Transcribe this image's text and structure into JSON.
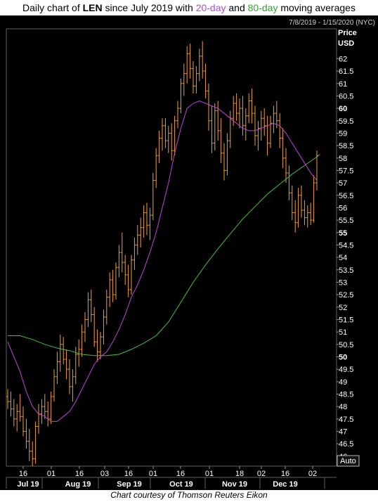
{
  "title": {
    "prefix": "Daily chart of ",
    "ticker": "LEN",
    "middle": " since July 2019 with ",
    "ma20": "20-day",
    "and": " and ",
    "ma80": "80-day",
    "suffix": " moving averages"
  },
  "date_range": "7/8/2019 - 1/15/2020 (NYC)",
  "price_label": "Price",
  "currency_label": "USD",
  "auto_label": "Auto",
  "caption": "Chart courtesy of Thomson Reuters Eikon",
  "colors": {
    "background": "#000000",
    "bars": "#f0a030",
    "ma20": "#c040e0",
    "ma80": "#40c040",
    "axis_text": "#ffffff",
    "panel": "#000000"
  },
  "chart_data": {
    "type": "ohlc",
    "ylim": [
      45.6,
      63.2
    ],
    "y_ticks": [
      {
        "v": 62,
        "label": "62",
        "bold": false
      },
      {
        "v": 61.5,
        "label": "61.5",
        "bold": false
      },
      {
        "v": 61,
        "label": "61",
        "bold": false
      },
      {
        "v": 60.5,
        "label": "60.5",
        "bold": false
      },
      {
        "v": 60,
        "label": "60",
        "bold": true
      },
      {
        "v": 59.5,
        "label": "59.5",
        "bold": false
      },
      {
        "v": 59,
        "label": "59",
        "bold": false
      },
      {
        "v": 58.5,
        "label": "58.5",
        "bold": false
      },
      {
        "v": 58,
        "label": "58",
        "bold": false
      },
      {
        "v": 57.5,
        "label": "57.5",
        "bold": false
      },
      {
        "v": 57,
        "label": "57",
        "bold": false
      },
      {
        "v": 56.5,
        "label": "56.5",
        "bold": false
      },
      {
        "v": 56,
        "label": "56",
        "bold": false
      },
      {
        "v": 55.5,
        "label": "55.5",
        "bold": false
      },
      {
        "v": 55,
        "label": "55",
        "bold": true
      },
      {
        "v": 54.5,
        "label": "54.5",
        "bold": false
      },
      {
        "v": 54,
        "label": "54",
        "bold": false
      },
      {
        "v": 53.5,
        "label": "53.5",
        "bold": false
      },
      {
        "v": 53,
        "label": "53",
        "bold": false
      },
      {
        "v": 52.5,
        "label": "52.5",
        "bold": false
      },
      {
        "v": 52,
        "label": "52",
        "bold": false
      },
      {
        "v": 51.5,
        "label": "51.5",
        "bold": false
      },
      {
        "v": 51,
        "label": "51",
        "bold": false
      },
      {
        "v": 50.5,
        "label": "50.5",
        "bold": false
      },
      {
        "v": 50,
        "label": "50",
        "bold": true
      },
      {
        "v": 49.5,
        "label": "49.5",
        "bold": false
      },
      {
        "v": 49,
        "label": "49",
        "bold": false
      },
      {
        "v": 48.5,
        "label": "48.5",
        "bold": false
      },
      {
        "v": 48,
        "label": "48",
        "bold": false
      },
      {
        "v": 47.5,
        "label": "47.5",
        "bold": false
      },
      {
        "v": 47,
        "label": "47",
        "bold": false
      },
      {
        "v": 46.5,
        "label": "46.5",
        "bold": false
      },
      {
        "v": 46,
        "label": "46",
        "bold": false
      }
    ],
    "x_day_ticks": [
      "16",
      "01",
      "16",
      "03",
      "16",
      "01",
      "16",
      "01",
      "18",
      "02",
      "16",
      "02"
    ],
    "x_month_labels": [
      "Jul 19",
      "Aug 19",
      "Sep 19",
      "Oct 19",
      "Nov 19",
      "Dec 19"
    ],
    "ohlc": [
      [
        48.4,
        48.7,
        47.9,
        48.2
      ],
      [
        48.2,
        48.6,
        47.6,
        47.9
      ],
      [
        47.9,
        48.3,
        47.2,
        47.5
      ],
      [
        47.5,
        48.1,
        47.0,
        47.8
      ],
      [
        47.8,
        48.5,
        47.4,
        47.6
      ],
      [
        47.6,
        48.0,
        46.8,
        47.0
      ],
      [
        47.0,
        47.5,
        46.3,
        46.6
      ],
      [
        46.6,
        47.1,
        45.8,
        46.2
      ],
      [
        46.2,
        46.6,
        45.6,
        45.9
      ],
      [
        45.9,
        47.4,
        45.7,
        47.2
      ],
      [
        47.2,
        48.1,
        46.9,
        47.7
      ],
      [
        47.7,
        48.3,
        47.3,
        48.0
      ],
      [
        48.0,
        48.5,
        47.5,
        47.8
      ],
      [
        47.8,
        48.2,
        47.2,
        47.5
      ],
      [
        47.5,
        48.6,
        47.3,
        48.4
      ],
      [
        48.4,
        49.5,
        48.2,
        49.2
      ],
      [
        49.2,
        50.2,
        48.9,
        49.8
      ],
      [
        49.8,
        50.9,
        49.4,
        50.5
      ],
      [
        50.5,
        50.8,
        49.7,
        49.9
      ],
      [
        49.9,
        50.3,
        49.1,
        49.5
      ],
      [
        49.5,
        49.9,
        48.5,
        48.8
      ],
      [
        48.8,
        49.5,
        48.2,
        49.2
      ],
      [
        49.2,
        50.4,
        48.9,
        50.1
      ],
      [
        50.1,
        50.7,
        49.6,
        50.3
      ],
      [
        50.3,
        51.3,
        50.0,
        51.0
      ],
      [
        51.0,
        51.8,
        50.6,
        51.5
      ],
      [
        51.5,
        52.6,
        51.2,
        52.3
      ],
      [
        52.3,
        52.7,
        51.4,
        51.7
      ],
      [
        51.7,
        52.0,
        50.4,
        50.6
      ],
      [
        50.6,
        51.1,
        49.8,
        50.2
      ],
      [
        50.2,
        51.0,
        49.9,
        50.8
      ],
      [
        50.8,
        51.9,
        50.5,
        51.6
      ],
      [
        51.6,
        52.7,
        51.3,
        52.4
      ],
      [
        52.4,
        53.4,
        52.0,
        53.1
      ],
      [
        53.1,
        53.5,
        52.2,
        52.5
      ],
      [
        52.5,
        53.8,
        52.3,
        53.6
      ],
      [
        53.6,
        54.5,
        53.2,
        54.2
      ],
      [
        54.2,
        55.0,
        53.4,
        53.8
      ],
      [
        53.8,
        54.1,
        52.9,
        53.3
      ],
      [
        53.3,
        53.7,
        52.4,
        52.7
      ],
      [
        52.7,
        54.1,
        52.5,
        53.9
      ],
      [
        53.9,
        54.8,
        53.5,
        54.5
      ],
      [
        54.5,
        55.3,
        54.1,
        54.9
      ],
      [
        54.9,
        55.6,
        54.4,
        55.2
      ],
      [
        55.2,
        56.1,
        54.8,
        55.8
      ],
      [
        55.8,
        56.2,
        54.9,
        55.3
      ],
      [
        55.3,
        56.0,
        54.7,
        55.7
      ],
      [
        55.7,
        57.4,
        55.5,
        57.1
      ],
      [
        57.1,
        58.4,
        56.8,
        58.1
      ],
      [
        58.1,
        59.1,
        57.8,
        58.8
      ],
      [
        58.8,
        59.6,
        58.3,
        59.3
      ],
      [
        59.3,
        59.6,
        58.4,
        58.7
      ],
      [
        58.7,
        59.3,
        58.2,
        59.0
      ],
      [
        59.0,
        59.4,
        57.9,
        58.3
      ],
      [
        58.3,
        59.7,
        58.1,
        59.5
      ],
      [
        59.5,
        60.3,
        59.2,
        60.0
      ],
      [
        60.0,
        61.2,
        59.8,
        61.0
      ],
      [
        61.0,
        61.8,
        60.5,
        61.4
      ],
      [
        61.4,
        62.5,
        61.0,
        62.2
      ],
      [
        62.2,
        62.6,
        61.2,
        61.6
      ],
      [
        61.6,
        61.9,
        60.6,
        60.9
      ],
      [
        60.9,
        61.7,
        60.6,
        61.4
      ],
      [
        61.4,
        62.4,
        61.1,
        62.1
      ],
      [
        62.1,
        62.7,
        61.2,
        61.5
      ],
      [
        61.5,
        61.8,
        60.4,
        60.7
      ],
      [
        60.7,
        61.0,
        59.1,
        59.5
      ],
      [
        59.5,
        60.1,
        58.2,
        58.6
      ],
      [
        58.6,
        60.2,
        58.3,
        59.9
      ],
      [
        59.9,
        60.3,
        58.7,
        59.1
      ],
      [
        59.1,
        59.6,
        57.8,
        58.2
      ],
      [
        58.2,
        58.6,
        57.1,
        57.5
      ],
      [
        57.5,
        59.0,
        57.3,
        58.7
      ],
      [
        58.7,
        59.9,
        58.4,
        59.6
      ],
      [
        59.6,
        60.5,
        59.3,
        60.2
      ],
      [
        60.2,
        60.6,
        59.5,
        59.8
      ],
      [
        59.8,
        60.4,
        59.2,
        60.0
      ],
      [
        60.0,
        60.5,
        58.9,
        59.3
      ],
      [
        59.3,
        60.0,
        58.7,
        59.7
      ],
      [
        59.7,
        60.6,
        59.4,
        60.3
      ],
      [
        60.3,
        60.8,
        59.4,
        59.8
      ],
      [
        59.8,
        60.1,
        58.5,
        58.9
      ],
      [
        58.9,
        59.5,
        58.3,
        59.2
      ],
      [
        59.2,
        59.9,
        58.7,
        59.6
      ],
      [
        59.6,
        60.0,
        58.9,
        59.3
      ],
      [
        59.3,
        59.7,
        58.1,
        58.6
      ],
      [
        58.6,
        59.7,
        58.4,
        59.4
      ],
      [
        59.4,
        60.1,
        59.0,
        59.8
      ],
      [
        59.8,
        60.3,
        59.2,
        59.5
      ],
      [
        59.5,
        59.8,
        58.4,
        58.8
      ],
      [
        58.8,
        59.2,
        57.6,
        58.0
      ],
      [
        58.0,
        58.4,
        57.0,
        57.4
      ],
      [
        57.4,
        57.7,
        56.3,
        56.6
      ],
      [
        56.6,
        56.9,
        55.5,
        55.8
      ],
      [
        55.8,
        56.3,
        55.0,
        55.4
      ],
      [
        55.4,
        56.8,
        55.2,
        56.5
      ],
      [
        56.5,
        56.9,
        55.6,
        55.9
      ],
      [
        55.9,
        56.3,
        55.3,
        55.6
      ],
      [
        55.6,
        56.1,
        55.2,
        55.8
      ],
      [
        55.8,
        56.2,
        55.3,
        55.5
      ],
      [
        55.5,
        57.3,
        55.4,
        57.0
      ],
      [
        57.0,
        58.3,
        56.7,
        58.1
      ]
    ],
    "ma20": [
      [
        0,
        50.6
      ],
      [
        2,
        50.0
      ],
      [
        4,
        49.4
      ],
      [
        6,
        48.6
      ],
      [
        8,
        48.0
      ],
      [
        10,
        47.7
      ],
      [
        12,
        47.6
      ],
      [
        14,
        47.4
      ],
      [
        16,
        47.4
      ],
      [
        18,
        47.6
      ],
      [
        20,
        47.8
      ],
      [
        22,
        48.2
      ],
      [
        24,
        48.7
      ],
      [
        26,
        49.2
      ],
      [
        28,
        49.7
      ],
      [
        30,
        50.0
      ],
      [
        32,
        50.2
      ],
      [
        34,
        50.6
      ],
      [
        36,
        51.1
      ],
      [
        38,
        51.7
      ],
      [
        40,
        52.4
      ],
      [
        42,
        52.9
      ],
      [
        44,
        53.5
      ],
      [
        46,
        54.2
      ],
      [
        48,
        55.0
      ],
      [
        50,
        56.0
      ],
      [
        52,
        57.0
      ],
      [
        54,
        58.2
      ],
      [
        56,
        59.2
      ],
      [
        58,
        60.0
      ],
      [
        60,
        60.2
      ],
      [
        62,
        60.3
      ],
      [
        64,
        60.2
      ],
      [
        66,
        60.1
      ],
      [
        68,
        60.0
      ],
      [
        70,
        59.8
      ],
      [
        72,
        59.6
      ],
      [
        74,
        59.4
      ],
      [
        76,
        59.2
      ],
      [
        78,
        59.1
      ],
      [
        80,
        59.1
      ],
      [
        82,
        59.2
      ],
      [
        84,
        59.3
      ],
      [
        86,
        59.4
      ],
      [
        88,
        59.3
      ],
      [
        90,
        59.0
      ],
      [
        92,
        58.6
      ],
      [
        94,
        58.2
      ],
      [
        96,
        57.8
      ],
      [
        98,
        57.4
      ],
      [
        100,
        57.1
      ]
    ],
    "ma80": [
      [
        0,
        50.85
      ],
      [
        4,
        50.85
      ],
      [
        8,
        50.7
      ],
      [
        12,
        50.5
      ],
      [
        16,
        50.35
      ],
      [
        20,
        50.25
      ],
      [
        24,
        50.1
      ],
      [
        28,
        50.05
      ],
      [
        32,
        50.05
      ],
      [
        36,
        50.1
      ],
      [
        40,
        50.3
      ],
      [
        44,
        50.55
      ],
      [
        48,
        50.85
      ],
      [
        52,
        51.4
      ],
      [
        56,
        52.2
      ],
      [
        60,
        53.0
      ],
      [
        64,
        53.7
      ],
      [
        68,
        54.35
      ],
      [
        72,
        54.95
      ],
      [
        76,
        55.55
      ],
      [
        80,
        56.05
      ],
      [
        84,
        56.55
      ],
      [
        88,
        56.95
      ],
      [
        92,
        57.35
      ],
      [
        96,
        57.7
      ],
      [
        100,
        58.05
      ],
      [
        101,
        58.15
      ]
    ]
  }
}
